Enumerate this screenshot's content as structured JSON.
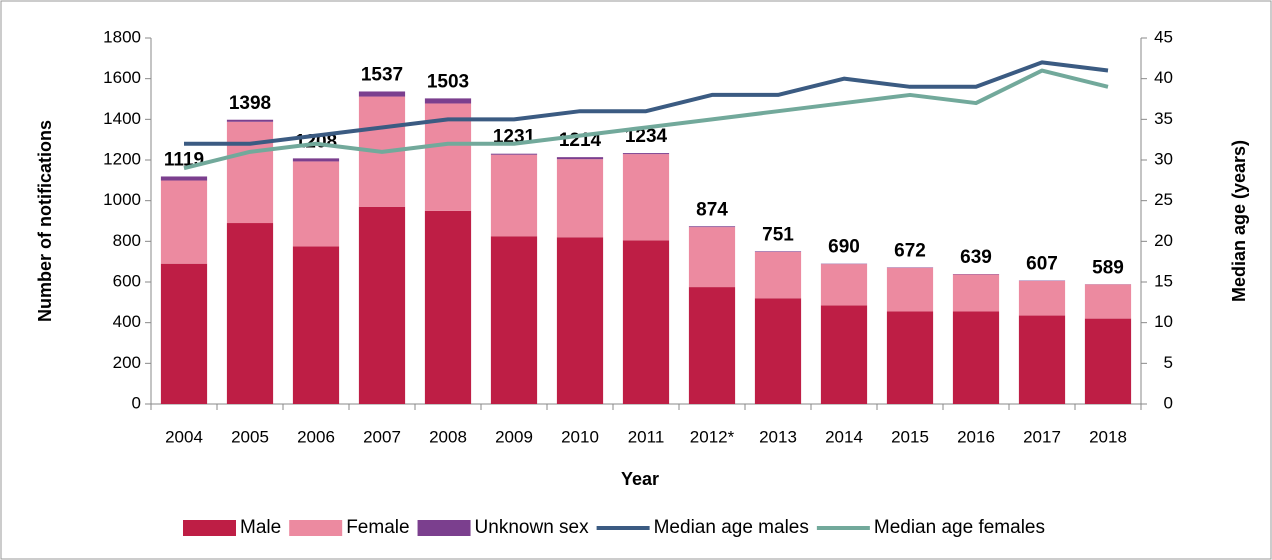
{
  "chart_data": {
    "type": "bar",
    "categories": [
      "2004",
      "2005",
      "2006",
      "2007",
      "2008",
      "2009",
      "2010",
      "2011",
      "2012*",
      "2013",
      "2014",
      "2015",
      "2016",
      "2017",
      "2018"
    ],
    "series": [
      {
        "name": "Male",
        "color": "#be1e45",
        "values": [
          690,
          890,
          775,
          970,
          950,
          825,
          820,
          805,
          575,
          520,
          485,
          455,
          455,
          435,
          420
        ]
      },
      {
        "name": "Female",
        "color": "#ec8aa0",
        "values": [
          409,
          498,
          418,
          542,
          528,
          401,
          384,
          424,
          295,
          228,
          203,
          215,
          182,
          170,
          168
        ]
      },
      {
        "name": "Unknown sex",
        "color": "#7b3f8e",
        "values": [
          20,
          10,
          15,
          25,
          25,
          5,
          10,
          5,
          4,
          3,
          2,
          2,
          2,
          2,
          1
        ]
      },
      {
        "name": "Median age males",
        "color": "#3b5b82",
        "type": "line",
        "axis": "y2",
        "values": [
          32,
          32,
          33,
          34,
          35,
          35,
          36,
          36,
          38,
          38,
          40,
          39,
          39,
          42,
          41
        ]
      },
      {
        "name": "Median age females",
        "color": "#72a99b",
        "type": "line",
        "axis": "y2",
        "values": [
          29,
          31,
          32,
          31,
          32,
          32,
          33,
          34,
          35,
          36,
          37,
          38,
          37,
          41,
          39
        ]
      }
    ],
    "totals": [
      1119,
      1398,
      1208,
      1537,
      1503,
      1231,
      1214,
      1234,
      874,
      751,
      690,
      672,
      639,
      607,
      589
    ],
    "xlabel": "Year",
    "ylabel": "Number of notifications",
    "y2label": "Median age (years)",
    "ylim": [
      0,
      1800
    ],
    "yticks": [
      0,
      200,
      400,
      600,
      800,
      1000,
      1200,
      1400,
      1600,
      1800
    ],
    "y2lim": [
      0,
      45
    ],
    "y2ticks": [
      0,
      5,
      10,
      15,
      20,
      25,
      30,
      35,
      40,
      45
    ],
    "legend": "bottom"
  }
}
